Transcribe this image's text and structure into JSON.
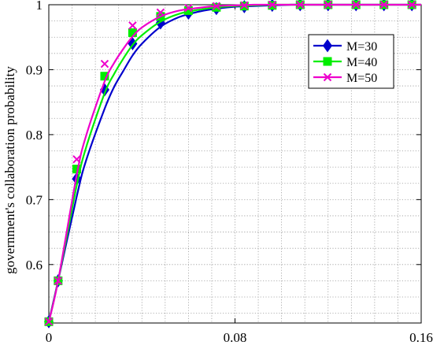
{
  "chart_data": {
    "type": "line",
    "title": "",
    "xlabel": "",
    "ylabel": "government's collaboration probability",
    "xlim": [
      0,
      0.16
    ],
    "ylim": [
      0.51,
      1.0
    ],
    "xticks": [
      0,
      0.08,
      0.16
    ],
    "xtick_labels": [
      "0",
      "0.08",
      "0.16"
    ],
    "yticks": [
      0.6,
      0.7,
      0.8,
      0.9,
      1.0
    ],
    "ytick_labels": [
      "0.6",
      "0.7",
      "0.8",
      "0.9",
      "1"
    ],
    "grid": true,
    "grid_style": "dotted",
    "legend_position": "upper-right",
    "x": [
      0,
      0.004,
      0.012,
      0.016,
      0.024,
      0.028,
      0.032,
      0.036,
      0.04,
      0.048,
      0.056,
      0.064,
      0.072,
      0.08,
      0.088,
      0.096,
      0.104,
      0.112,
      0.12,
      0.128,
      0.136,
      0.144,
      0.152,
      0.16
    ],
    "series": [
      {
        "name": "M=30",
        "color": "#0000cc",
        "marker": "diamond",
        "values": [
          0.512,
          0.575,
          0.705,
          0.76,
          0.84,
          0.873,
          0.898,
          0.922,
          0.94,
          0.966,
          0.981,
          0.989,
          0.994,
          0.997,
          0.998,
          0.999,
          1.0,
          1.0,
          1.0,
          1.0,
          1.0,
          1.0,
          1.0,
          1.0
        ],
        "marker_x": [
          0,
          0.004,
          0.012,
          0.024,
          0.036,
          0.048,
          0.06,
          0.072,
          0.084,
          0.096,
          0.108,
          0.12,
          0.132,
          0.144,
          0.156
        ],
        "marker_y": [
          0.512,
          0.575,
          0.732,
          0.869,
          0.94,
          0.972,
          0.987,
          0.994,
          0.997,
          0.999,
          1.0,
          1.0,
          1.0,
          1.0,
          1.0
        ]
      },
      {
        "name": "M=40",
        "color": "#00ee00",
        "marker": "square",
        "values": [
          0.512,
          0.575,
          0.722,
          0.78,
          0.864,
          0.893,
          0.917,
          0.938,
          0.953,
          0.974,
          0.986,
          0.992,
          0.996,
          0.998,
          0.999,
          1.0,
          1.0,
          1.0,
          1.0,
          1.0,
          1.0,
          1.0,
          1.0,
          1.0
        ],
        "marker_x": [
          0,
          0.004,
          0.012,
          0.024,
          0.036,
          0.048,
          0.06,
          0.072,
          0.084,
          0.096,
          0.108,
          0.12,
          0.132,
          0.144,
          0.156
        ],
        "marker_y": [
          0.512,
          0.575,
          0.747,
          0.89,
          0.957,
          0.982,
          0.991,
          0.996,
          0.998,
          0.999,
          1.0,
          1.0,
          1.0,
          1.0,
          1.0
        ]
      },
      {
        "name": "M=50",
        "color": "#ee00cc",
        "marker": "x",
        "values": [
          0.512,
          0.575,
          0.738,
          0.798,
          0.882,
          0.91,
          0.932,
          0.951,
          0.965,
          0.982,
          0.991,
          0.995,
          0.998,
          0.999,
          1.0,
          1.0,
          1.0,
          1.0,
          1.0,
          1.0,
          1.0,
          1.0,
          1.0,
          1.0
        ],
        "marker_x": [
          0,
          0.004,
          0.012,
          0.024,
          0.036,
          0.048,
          0.06,
          0.072,
          0.084,
          0.096,
          0.108,
          0.12,
          0.132,
          0.144,
          0.156
        ],
        "marker_y": [
          0.512,
          0.575,
          0.762,
          0.909,
          0.968,
          0.988,
          0.995,
          0.998,
          0.999,
          1.0,
          1.0,
          1.0,
          1.0,
          1.0,
          1.0
        ]
      }
    ]
  }
}
